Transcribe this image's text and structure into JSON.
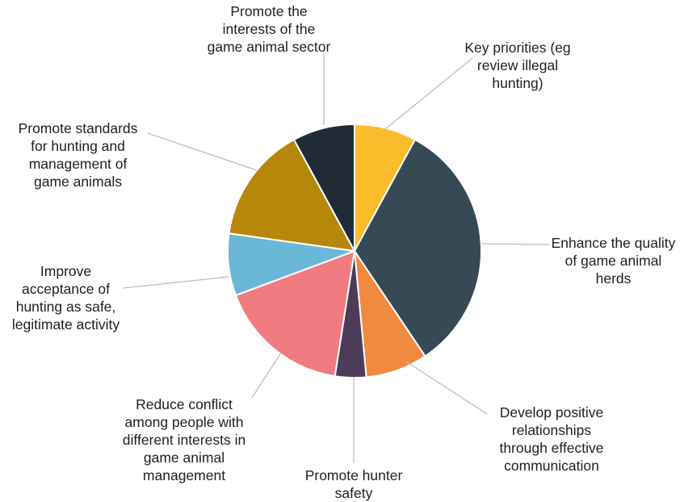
{
  "chart_data": {
    "type": "pie",
    "title": "",
    "start_angle_deg": 0,
    "direction": "clockwise",
    "slices": [
      {
        "label": "Key priorities (eg review illegal hunting)",
        "value": 8,
        "color": "#fbbc2c"
      },
      {
        "label": "Enhance the quality of game animal herds",
        "value": 33,
        "color": "#374955"
      },
      {
        "label": "Develop positive relationships through effective communication",
        "value": 8,
        "color": "#f08a3e"
      },
      {
        "label": "Promote hunter safety",
        "value": 4,
        "color": "#4d3b5a"
      },
      {
        "label": "Reduce conflict among people with different interests in game animal management",
        "value": 17,
        "color": "#f07c81"
      },
      {
        "label": "Improve acceptance of hunting as safe, legitimate activity",
        "value": 8,
        "color": "#6bb7d8"
      },
      {
        "label": "Promote standards for hunting and management of game animals",
        "value": 15,
        "color": "#b6870a"
      },
      {
        "label": "Promote the interests of the game animal sector",
        "value": 8,
        "color": "#212b36"
      }
    ]
  },
  "labels": {
    "key_priorities": "Key priorities (eg\nreview illegal\nhunting)",
    "enhance_quality": "Enhance the quality\nof game animal\nherds",
    "develop_relationships": "Develop positive\nrelationships\nthrough effective\ncommunication",
    "hunter_safety": "Promote hunter\nsafety",
    "reduce_conflict": "Reduce conflict\namong people with\ndifferent interests in\ngame animal\nmanagement",
    "improve_acceptance": "Improve\nacceptance of\nhunting as safe,\nlegitimate activity",
    "promote_standards": "Promote standards\nfor hunting and\nmanagement of\ngame animals",
    "promote_interests": "Promote the\ninterests of the\ngame animal sector"
  }
}
